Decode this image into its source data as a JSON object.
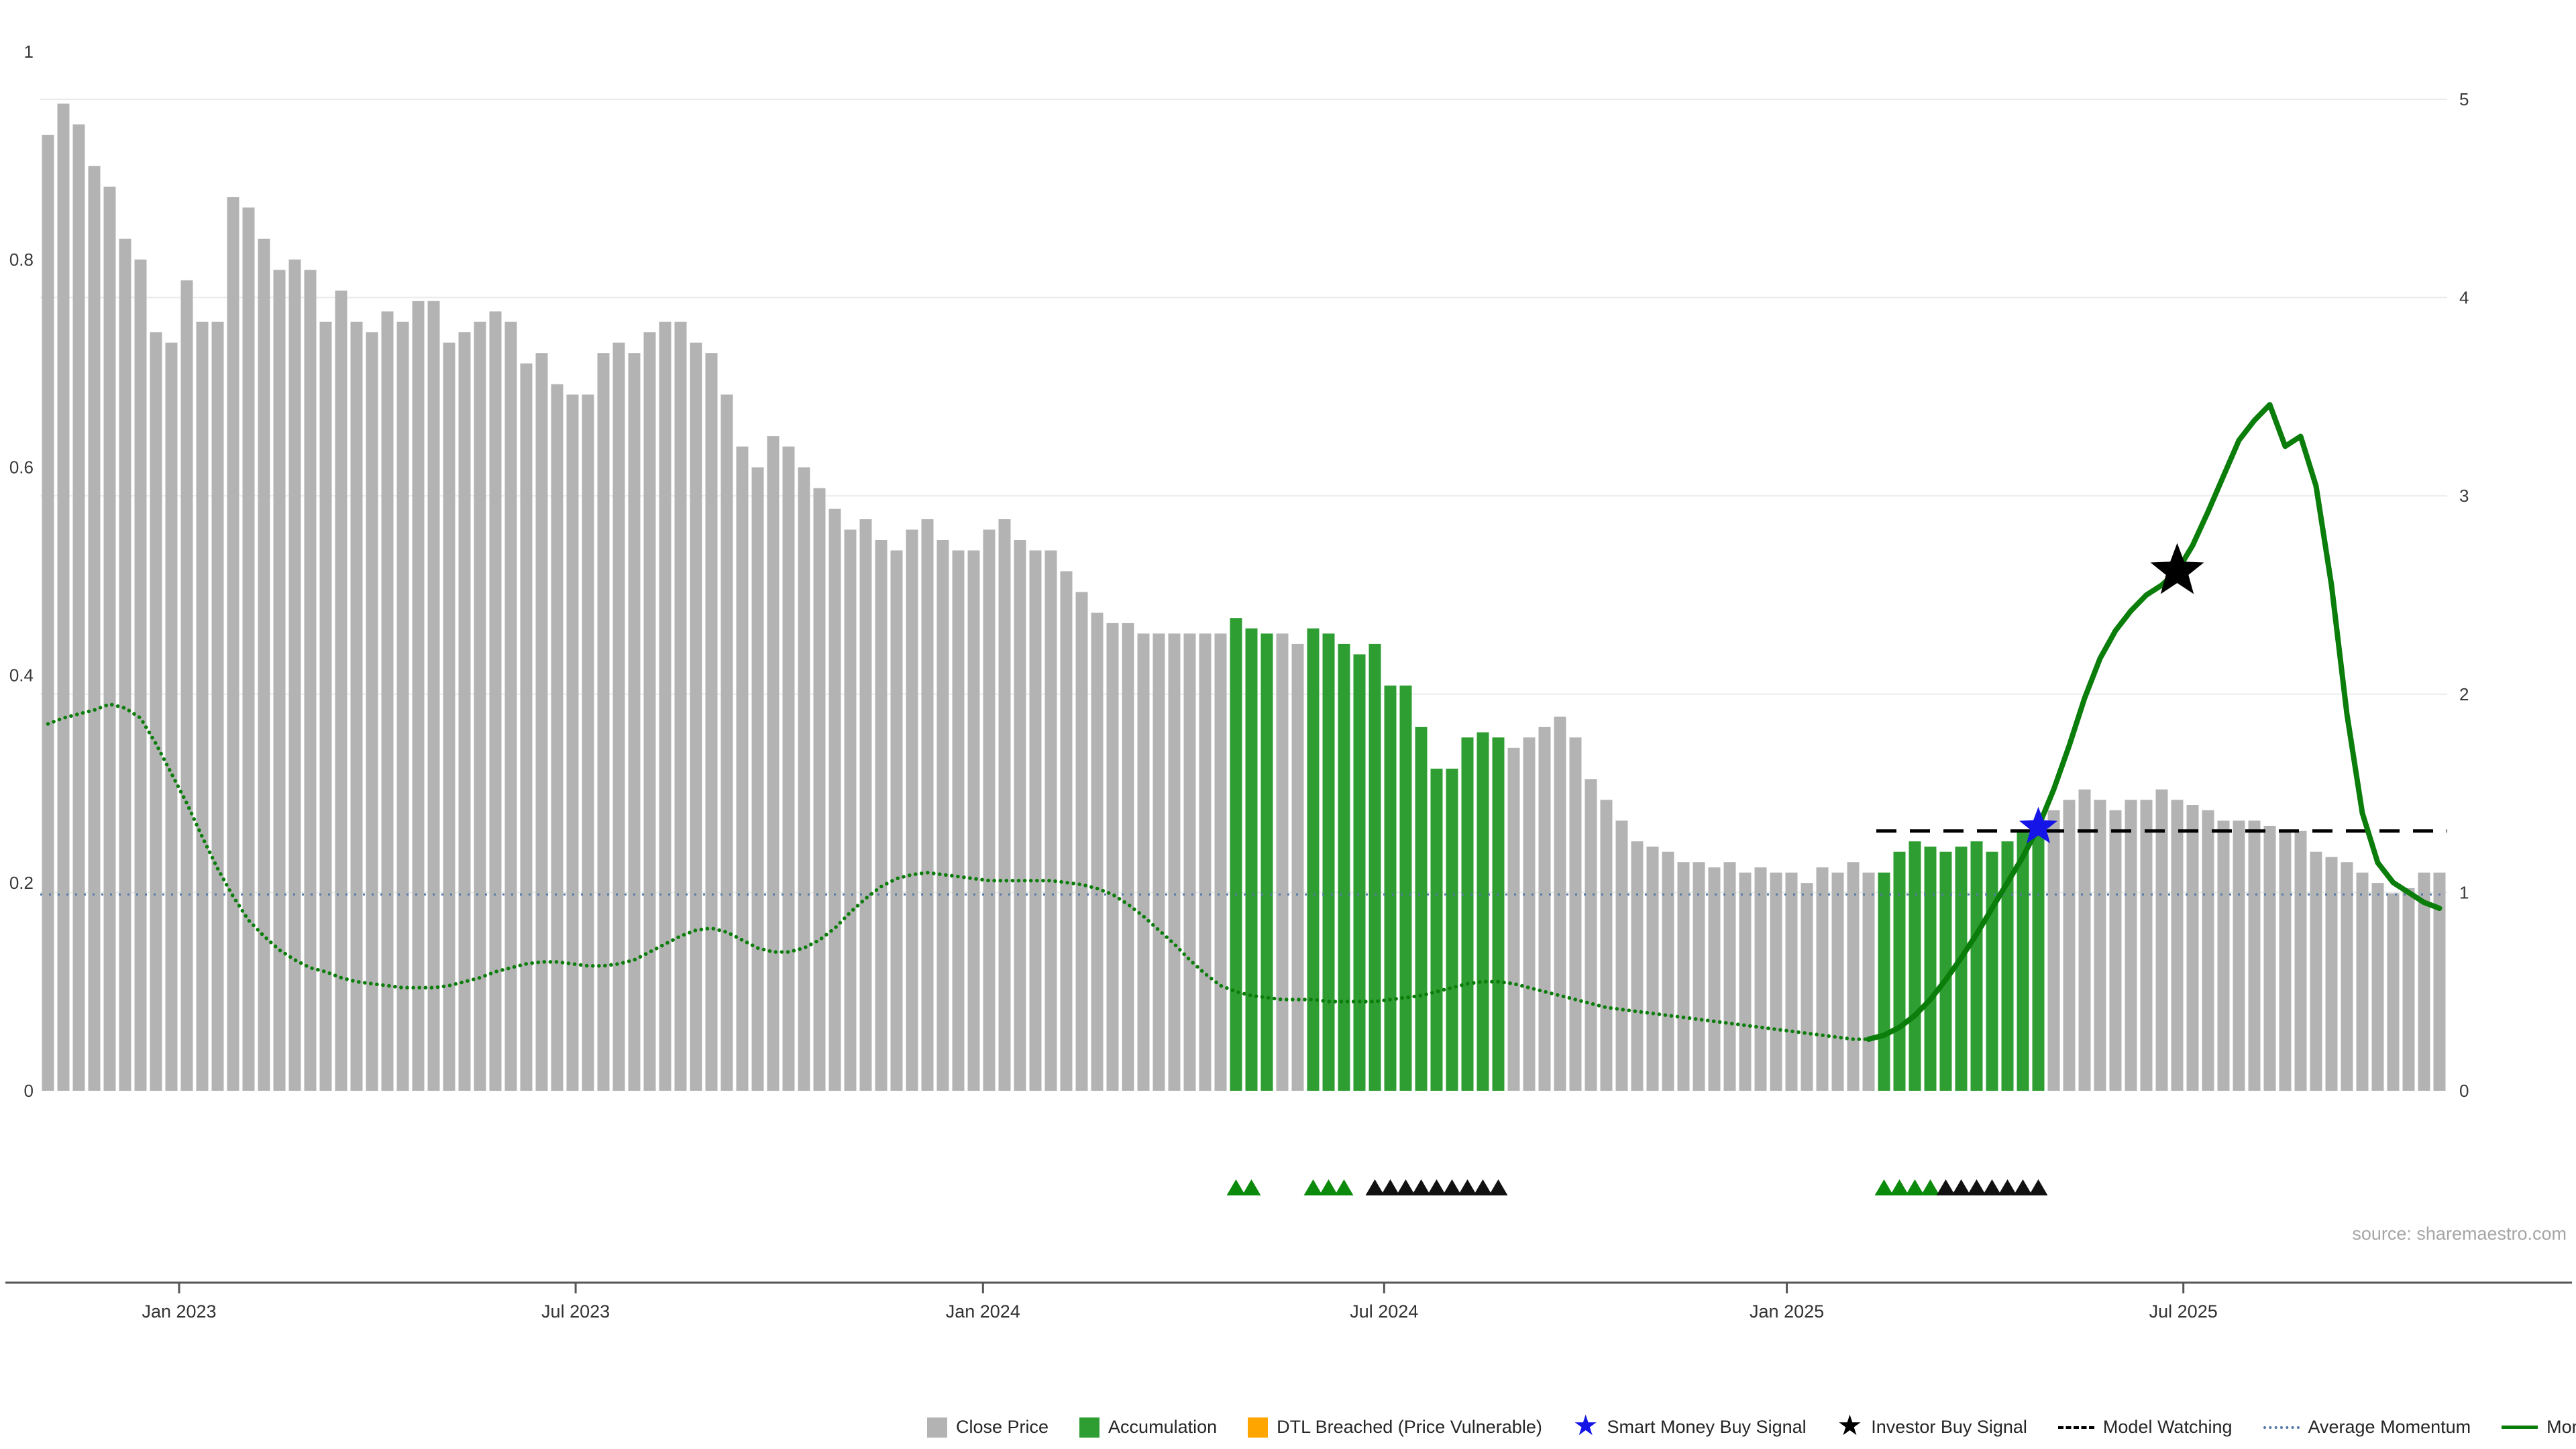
{
  "source": "source: sharemaestro.com",
  "legend": {
    "items": [
      {
        "type": "square",
        "color": "#b3b3b3",
        "label": "Close Price"
      },
      {
        "type": "square",
        "color": "#2f9e32",
        "label": "Accumulation"
      },
      {
        "type": "square",
        "color": "#ffa500",
        "label": "DTL Breached (Price Vulnerable)"
      },
      {
        "type": "star",
        "color": "#1515e8",
        "label": "Smart Money Buy Signal"
      },
      {
        "type": "star",
        "color": "#000000",
        "label": "Investor Buy Signal"
      },
      {
        "type": "dashed-line",
        "color": "#000000",
        "label": "Model Watching"
      },
      {
        "type": "dotted-line",
        "color": "#5578aa",
        "label": "Average Momentum"
      },
      {
        "type": "line",
        "color": "#0a7d0a",
        "label": "Momentum Signal"
      },
      {
        "type": "triangle",
        "color": "#1c8c1c",
        "label": "Accumulation"
      }
    ]
  },
  "chart_data": {
    "type": "bar",
    "title": "",
    "xlabel": "",
    "ylabel": "",
    "grid": true,
    "x_ticks": [
      {
        "label": "Jan 2023",
        "index": 8.5
      },
      {
        "label": "Jul 2023",
        "index": 34.2
      },
      {
        "label": "Jan 2024",
        "index": 60.6
      },
      {
        "label": "Jul 2024",
        "index": 86.6
      },
      {
        "label": "Jan 2025",
        "index": 112.7
      },
      {
        "label": "Jul 2025",
        "index": 138.4
      }
    ],
    "left_axis": {
      "tick_labels": [
        "0",
        "0.2",
        "0.4",
        "0.6",
        "0.8",
        "1"
      ],
      "tick_values": [
        0,
        0.2,
        0.4,
        0.6,
        0.8,
        1
      ],
      "range": [
        0,
        1
      ]
    },
    "right_axis": {
      "tick_labels": [
        "0",
        "1",
        "2",
        "3",
        "4",
        "5"
      ],
      "tick_values": [
        0,
        1,
        2,
        3,
        4,
        5
      ],
      "range": [
        0,
        5.24
      ]
    },
    "bars": {
      "name": "Close Price (normalized)",
      "color_default": "#b3b3b3",
      "color_accumulation": "#2f9e32",
      "values": [
        0.92,
        0.95,
        0.93,
        0.89,
        0.87,
        0.82,
        0.8,
        0.73,
        0.72,
        0.78,
        0.74,
        0.74,
        0.86,
        0.85,
        0.82,
        0.79,
        0.8,
        0.79,
        0.74,
        0.77,
        0.74,
        0.73,
        0.75,
        0.74,
        0.76,
        0.76,
        0.72,
        0.73,
        0.74,
        0.75,
        0.74,
        0.7,
        0.71,
        0.68,
        0.67,
        0.67,
        0.71,
        0.72,
        0.71,
        0.73,
        0.74,
        0.74,
        0.72,
        0.71,
        0.67,
        0.62,
        0.6,
        0.63,
        0.62,
        0.6,
        0.58,
        0.56,
        0.54,
        0.55,
        0.53,
        0.52,
        0.54,
        0.55,
        0.53,
        0.52,
        0.52,
        0.54,
        0.55,
        0.53,
        0.52,
        0.52,
        0.5,
        0.48,
        0.46,
        0.45,
        0.45,
        0.44,
        0.44,
        0.44,
        0.44,
        0.44,
        0.44,
        0.455,
        0.445,
        0.44,
        0.44,
        0.43,
        0.445,
        0.44,
        0.43,
        0.42,
        0.43,
        0.39,
        0.39,
        0.35,
        0.31,
        0.31,
        0.34,
        0.345,
        0.34,
        0.33,
        0.34,
        0.35,
        0.36,
        0.34,
        0.3,
        0.28,
        0.26,
        0.24,
        0.235,
        0.23,
        0.22,
        0.22,
        0.215,
        0.22,
        0.21,
        0.215,
        0.21,
        0.21,
        0.2,
        0.215,
        0.21,
        0.22,
        0.21,
        0.21,
        0.23,
        0.24,
        0.235,
        0.23,
        0.235,
        0.24,
        0.23,
        0.24,
        0.25,
        0.26,
        0.27,
        0.28,
        0.29,
        0.28,
        0.27,
        0.28,
        0.28,
        0.29,
        0.28,
        0.275,
        0.27,
        0.26,
        0.26,
        0.26,
        0.255,
        0.25,
        0.25,
        0.23,
        0.225,
        0.22,
        0.21,
        0.2,
        0.19,
        0.195,
        0.21,
        0.21
      ],
      "accumulation_indices": [
        77,
        78,
        79,
        82,
        83,
        84,
        85,
        86,
        87,
        88,
        89,
        90,
        91,
        92,
        93,
        94,
        119,
        120,
        121,
        122,
        123,
        124,
        125,
        126,
        127,
        128,
        129
      ]
    },
    "momentum": {
      "name": "Momentum Signal",
      "color": "#0a7d0a",
      "values": [
        1.85,
        1.88,
        1.9,
        1.92,
        1.95,
        1.93,
        1.88,
        1.75,
        1.6,
        1.45,
        1.28,
        1.12,
        0.98,
        0.86,
        0.78,
        0.71,
        0.66,
        0.62,
        0.6,
        0.57,
        0.55,
        0.54,
        0.53,
        0.52,
        0.52,
        0.52,
        0.53,
        0.55,
        0.57,
        0.6,
        0.62,
        0.64,
        0.65,
        0.65,
        0.64,
        0.63,
        0.63,
        0.64,
        0.66,
        0.7,
        0.74,
        0.78,
        0.81,
        0.82,
        0.8,
        0.76,
        0.72,
        0.7,
        0.7,
        0.72,
        0.76,
        0.82,
        0.9,
        0.97,
        1.03,
        1.07,
        1.09,
        1.1,
        1.09,
        1.08,
        1.07,
        1.06,
        1.06,
        1.06,
        1.06,
        1.06,
        1.05,
        1.04,
        1.02,
        0.99,
        0.94,
        0.88,
        0.81,
        0.74,
        0.66,
        0.59,
        0.53,
        0.5,
        0.48,
        0.47,
        0.46,
        0.46,
        0.46,
        0.45,
        0.45,
        0.45,
        0.45,
        0.46,
        0.47,
        0.48,
        0.5,
        0.52,
        0.54,
        0.55,
        0.55,
        0.54,
        0.52,
        0.5,
        0.48,
        0.46,
        0.44,
        0.42,
        0.41,
        0.4,
        0.39,
        0.38,
        0.37,
        0.36,
        0.35,
        0.34,
        0.33,
        0.32,
        0.31,
        0.3,
        0.29,
        0.28,
        0.27,
        0.26,
        0.26,
        0.28,
        0.32,
        0.38,
        0.46,
        0.56,
        0.67,
        0.79,
        0.92,
        1.05,
        1.18,
        1.33,
        1.52,
        1.74,
        1.98,
        2.18,
        2.32,
        2.42,
        2.5,
        2.55,
        2.62,
        2.75,
        2.92,
        3.1,
        3.28,
        3.38,
        3.46,
        3.25,
        3.3,
        3.05,
        2.55,
        1.9,
        1.4,
        1.15,
        1.05,
        1.0,
        0.95,
        0.92
      ]
    },
    "average_momentum": {
      "value": 0.99,
      "style": "dotted",
      "color": "#5578aa"
    },
    "model_watching": {
      "value": 1.31,
      "start_index": 119,
      "style": "dashed",
      "color": "#000000"
    },
    "signals": {
      "smart_money_buy": {
        "index": 129,
        "value": 1.33,
        "color": "#1515e8"
      },
      "investor_buy": {
        "index": 138,
        "value": 2.62,
        "color": "#000000"
      }
    },
    "markers_below": {
      "green_triangle_color": "#0c8a0c",
      "black_triangle_color": "#111111",
      "green_triangle_indices": [
        77,
        78,
        82,
        83,
        84,
        119,
        120,
        121,
        122
      ],
      "black_triangle_indices": [
        86,
        87,
        88,
        89,
        90,
        91,
        92,
        93,
        94,
        123,
        124,
        125,
        126,
        127,
        128,
        129
      ]
    }
  }
}
